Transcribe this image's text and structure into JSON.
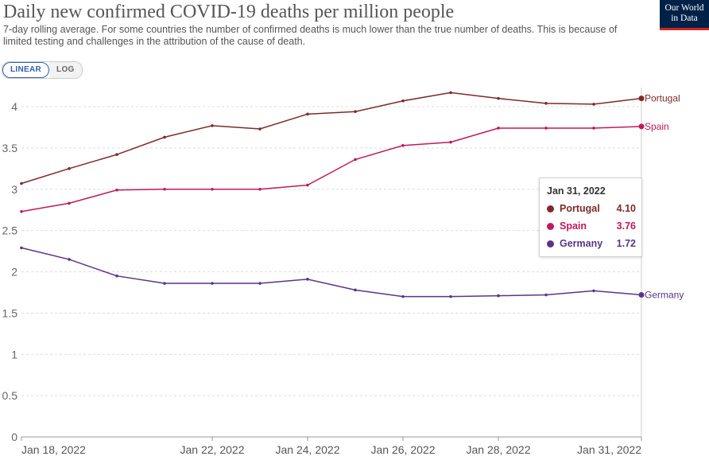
{
  "header": {
    "title": "Daily new confirmed COVID-19 deaths per million people",
    "subtitle": "7-day rolling average. For some countries the number of confirmed deaths is much lower than the true number of deaths. This is because of limited testing and challenges in the attribution of the cause of death."
  },
  "logo": {
    "line1": "Our World",
    "line2": "in Data"
  },
  "scale_toggle": {
    "linear_label": "LINEAR",
    "log_label": "LOG",
    "selected": "LINEAR"
  },
  "tooltip": {
    "date": "Jan 31, 2022",
    "rows": [
      {
        "name": "Portugal",
        "value": "4.10",
        "color": "#7d2a2a"
      },
      {
        "name": "Spain",
        "value": "3.76",
        "color": "#c2185b"
      },
      {
        "name": "Germany",
        "value": "1.72",
        "color": "#5b3488"
      }
    ]
  },
  "colors": {
    "portugal": "#7d2a2a",
    "spain": "#c2185b",
    "germany": "#5b3488",
    "grid": "#dddddd",
    "text": "#555555"
  },
  "chart_data": {
    "type": "line",
    "title": "Daily new confirmed COVID-19 deaths per million people",
    "xlabel": "",
    "ylabel": "",
    "ylim": [
      0,
      4
    ],
    "y_ticks": [
      "0",
      "0.5",
      "1",
      "1.5",
      "2",
      "2.5",
      "3",
      "3.5",
      "4"
    ],
    "y_tick_values": [
      0,
      0.5,
      1,
      1.5,
      2,
      2.5,
      3,
      3.5,
      4
    ],
    "x": [
      "2022-01-18",
      "2022-01-19",
      "2022-01-20",
      "2022-01-21",
      "2022-01-22",
      "2022-01-23",
      "2022-01-24",
      "2022-01-25",
      "2022-01-26",
      "2022-01-27",
      "2022-01-28",
      "2022-01-29",
      "2022-01-30",
      "2022-01-31"
    ],
    "x_tick_labels": [
      "Jan 18, 2022",
      "Jan 22, 2022",
      "Jan 24, 2022",
      "Jan 26, 2022",
      "Jan 28, 2022",
      "Jan 31, 2022"
    ],
    "x_tick_index": [
      0,
      4,
      6,
      8,
      10,
      13
    ],
    "grid": true,
    "legend": "end-of-line labels",
    "series": [
      {
        "name": "Portugal",
        "values": [
          3.07,
          3.25,
          3.42,
          3.63,
          3.77,
          3.73,
          3.91,
          3.94,
          4.07,
          4.17,
          4.1,
          4.04,
          4.03,
          4.1
        ]
      },
      {
        "name": "Spain",
        "values": [
          2.73,
          2.83,
          2.99,
          3.0,
          3.0,
          3.0,
          3.05,
          3.36,
          3.53,
          3.57,
          3.74,
          3.74,
          3.74,
          3.76
        ]
      },
      {
        "name": "Germany",
        "values": [
          2.29,
          2.15,
          1.95,
          1.86,
          1.86,
          1.86,
          1.91,
          1.78,
          1.7,
          1.7,
          1.71,
          1.72,
          1.77,
          1.72
        ]
      }
    ]
  }
}
